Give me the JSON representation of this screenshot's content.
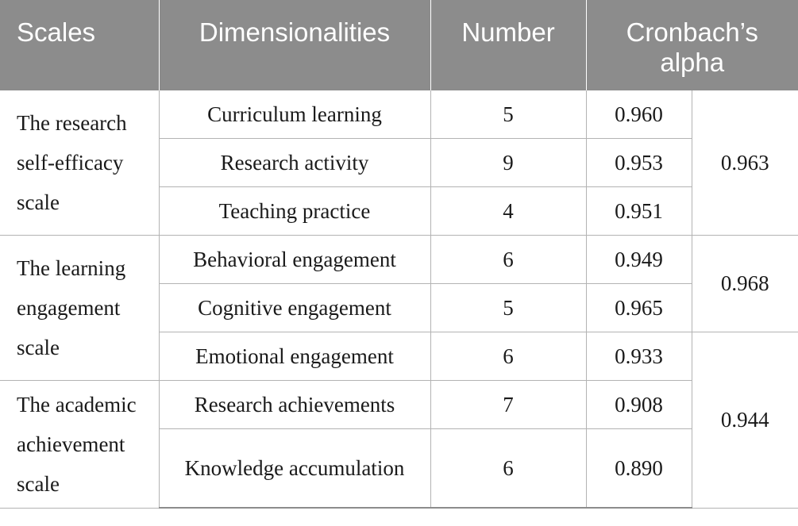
{
  "header": {
    "col_scales": "Scales",
    "col_dimensionalities": "Dimensionalities",
    "col_number": "Number",
    "col_alpha": "Cronbach’s\nalpha"
  },
  "groups": [
    {
      "scale": "The research\nself-efficacy\nscale",
      "overall_alpha": "0.963",
      "rows": [
        {
          "dimension": "Curriculum learning",
          "number": "5",
          "alpha": "0.960"
        },
        {
          "dimension": "Research activity",
          "number": "9",
          "alpha": "0.953"
        },
        {
          "dimension": "Teaching practice",
          "number": "4",
          "alpha": "0.951"
        }
      ]
    },
    {
      "scale": "The learning\nengagement\nscale",
      "overall_alpha": "0.968",
      "rows": [
        {
          "dimension": "Behavioral engagement",
          "number": "6",
          "alpha": "0.949"
        },
        {
          "dimension": "Cognitive engagement",
          "number": "5",
          "alpha": "0.965"
        },
        {
          "dimension": "Emotional engagement",
          "number": "6",
          "alpha": "0.933"
        }
      ]
    },
    {
      "scale": "The academic\nachievement\nscale",
      "overall_alpha": "0.944",
      "rows": [
        {
          "dimension": "Research achievements",
          "number": "7",
          "alpha": "0.908"
        },
        {
          "dimension": "Knowledge accumulation",
          "number": "6",
          "alpha": "0.890"
        }
      ]
    }
  ]
}
